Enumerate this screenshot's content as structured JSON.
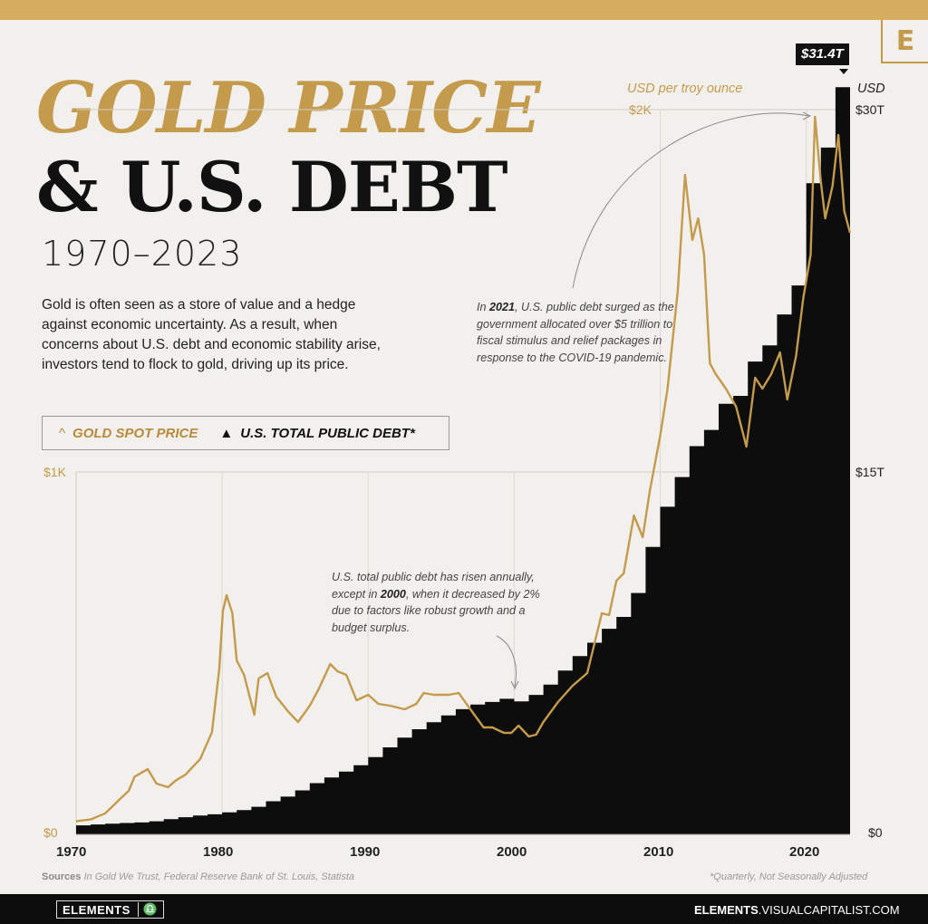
{
  "header": {
    "title_line1": "GOLD PRICE",
    "title_line2": "& U.S. DEBT",
    "years": "1970–2023",
    "description": "Gold is often seen as a store of value and a hedge against economic uncertainty. As a result, when concerns about U.S. debt and economic stability arise, investors tend to flock to gold, driving up its price.",
    "badge": "E"
  },
  "legend": {
    "gold_symbol": "^",
    "gold_label": "GOLD SPOT PRICE",
    "debt_symbol": "▲",
    "debt_label": "U.S. TOTAL PUBLIC DEBT*"
  },
  "annotations": {
    "note_2021_pre": "In ",
    "note_2021_bold": "2021",
    "note_2021_post": ", U.S. public debt surged as the government allocated over $5 trillion to fiscal stimulus and relief packages in response to the COVID-19 pandemic.",
    "note_2000_pre": "U.S. total public debt has risen annually, except in ",
    "note_2000_bold": "2000",
    "note_2000_post": ", when it decreased by 2% due to factors like robust growth and a budget surplus.",
    "callout": "$31.4T"
  },
  "axes": {
    "gold_unit": "USD per troy ounce",
    "debt_unit": "USD",
    "gold_ticks": [
      "$0",
      "$1K",
      "$2K"
    ],
    "debt_ticks": [
      "$0",
      "$15T",
      "$30T"
    ],
    "x_ticks": [
      "1970",
      "1980",
      "1990",
      "2000",
      "2010",
      "2020"
    ]
  },
  "footer": {
    "sources_label": "Sources",
    "sources_text": "In Gold We Trust, Federal Reserve Bank of St. Louis, Statista",
    "footnote": "*Quarterly, Not Seasonally Adjusted",
    "brand": "ELEMENTS",
    "brand_mark": "♎",
    "site_bold": "ELEMENTS",
    "site_rest": ".VISUALCAPITALIST.COM"
  },
  "colors": {
    "gold": "#c49a4c",
    "debt": "#0d0d0d",
    "accent_bar": "#d6ad60"
  },
  "chart_data": {
    "type": "area",
    "title": "GOLD PRICE & U.S. DEBT",
    "subtitle": "1970–2023",
    "xlim": [
      1970,
      2023
    ],
    "x_ticks": [
      1970,
      1980,
      1990,
      2000,
      2010,
      2020
    ],
    "series": [
      {
        "name": "U.S. TOTAL PUBLIC DEBT*",
        "type": "area-step",
        "axis": "right",
        "unit": "USD trillions",
        "ylim": [
          0,
          30
        ],
        "x": [
          1970,
          1971,
          1972,
          1973,
          1974,
          1975,
          1976,
          1977,
          1978,
          1979,
          1980,
          1981,
          1982,
          1983,
          1984,
          1985,
          1986,
          1987,
          1988,
          1989,
          1990,
          1991,
          1992,
          1993,
          1994,
          1995,
          1996,
          1997,
          1998,
          1999,
          2000,
          2001,
          2002,
          2003,
          2004,
          2005,
          2006,
          2007,
          2008,
          2009,
          2010,
          2011,
          2012,
          2013,
          2014,
          2015,
          2016,
          2017,
          2018,
          2019,
          2020,
          2021,
          2022,
          2023
        ],
        "values": [
          0.37,
          0.41,
          0.44,
          0.47,
          0.49,
          0.54,
          0.63,
          0.71,
          0.78,
          0.83,
          0.91,
          1.0,
          1.14,
          1.37,
          1.56,
          1.82,
          2.12,
          2.35,
          2.6,
          2.86,
          3.2,
          3.6,
          4.0,
          4.35,
          4.64,
          4.92,
          5.18,
          5.37,
          5.48,
          5.61,
          5.5,
          5.77,
          6.2,
          6.78,
          7.38,
          7.93,
          8.51,
          9.0,
          9.99,
          11.9,
          13.56,
          14.79,
          16.07,
          16.74,
          17.82,
          18.15,
          19.57,
          20.24,
          21.52,
          22.72,
          26.95,
          28.43,
          30.93,
          31.4
        ]
      },
      {
        "name": "GOLD SPOT PRICE",
        "type": "line",
        "axis": "left",
        "unit": "USD per troy ounce",
        "ylim": [
          0,
          2000
        ],
        "x": [
          1970,
          1971,
          1972,
          1973,
          1973.6,
          1974,
          1974.9,
          1975.5,
          1976.3,
          1976.8,
          1977.5,
          1978.5,
          1979.3,
          1979.8,
          1980.05,
          1980.3,
          1980.7,
          1981,
          1981.5,
          1982.2,
          1982.5,
          1983.1,
          1983.7,
          1984.5,
          1985.2,
          1986,
          1986.6,
          1987.4,
          1987.9,
          1988.5,
          1989.2,
          1990,
          1990.7,
          1991.5,
          1992.5,
          1993.3,
          1993.8,
          1994.5,
          1995.5,
          1996.2,
          1997,
          1997.9,
          1998.5,
          1999.3,
          1999.8,
          2000.3,
          2001,
          2001.5,
          2002,
          2003,
          2004,
          2005,
          2006,
          2006.5,
          2007,
          2007.5,
          2008.2,
          2008.8,
          2009.3,
          2010,
          2010.5,
          2011.2,
          2011.7,
          2012.2,
          2012.6,
          2013,
          2013.4,
          2013.8,
          2014.5,
          2015.2,
          2015.9,
          2016.5,
          2017,
          2017.6,
          2018.2,
          2018.7,
          2019.3,
          2019.8,
          2020.3,
          2020.6,
          2021,
          2021.3,
          2021.8,
          2022.2,
          2022.6,
          2023
        ],
        "values": [
          36,
          41,
          58,
          97,
          120,
          159,
          180,
          140,
          130,
          148,
          165,
          208,
          282,
          455,
          615,
          660,
          610,
          480,
          440,
          330,
          430,
          445,
          380,
          340,
          310,
          355,
          400,
          470,
          450,
          440,
          370,
          385,
          360,
          355,
          345,
          360,
          390,
          385,
          385,
          390,
          345,
          295,
          295,
          280,
          280,
          300,
          270,
          275,
          310,
          365,
          410,
          445,
          610,
          605,
          700,
          720,
          880,
          820,
          950,
          1100,
          1230,
          1500,
          1820,
          1640,
          1700,
          1600,
          1300,
          1270,
          1230,
          1180,
          1070,
          1260,
          1230,
          1270,
          1330,
          1200,
          1320,
          1480,
          1600,
          1980,
          1800,
          1700,
          1790,
          1930,
          1720,
          1660
        ]
      }
    ]
  }
}
